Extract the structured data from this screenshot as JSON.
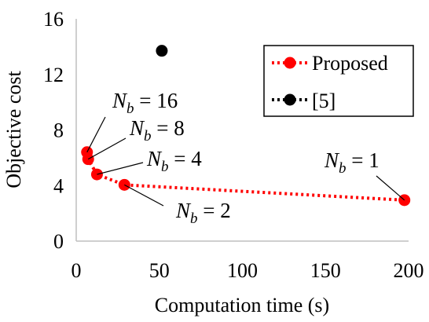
{
  "chart_data": {
    "type": "line",
    "xlabel": "Computation time (s)",
    "ylabel": "Objective cost",
    "xlim": [
      0,
      200
    ],
    "ylim": [
      0,
      16
    ],
    "xticks": [
      0,
      50,
      100,
      150,
      200
    ],
    "yticks": [
      0,
      4,
      8,
      12,
      16
    ],
    "legend_position": "top-right",
    "series": [
      {
        "name": "Proposed",
        "color": "#ff0000",
        "line_style": "dotted",
        "points": [
          {
            "x": 6.5,
            "y": 6.4,
            "label": "N_b = 16"
          },
          {
            "x": 7.2,
            "y": 5.9,
            "label": "N_b = 8"
          },
          {
            "x": 12.5,
            "y": 4.8,
            "label": "N_b = 4"
          },
          {
            "x": 29,
            "y": 4.05,
            "label": "N_b = 2"
          },
          {
            "x": 197.5,
            "y": 2.95,
            "label": "N_b = 1"
          }
        ]
      },
      {
        "name": "[5]",
        "color": "#000000",
        "line_style": "dotted",
        "points": [
          {
            "x": 51.5,
            "y": 13.7
          }
        ]
      }
    ],
    "annotations": [
      {
        "var": "N",
        "sub": "b",
        "value": "16"
      },
      {
        "var": "N",
        "sub": "b",
        "value": "8"
      },
      {
        "var": "N",
        "sub": "b",
        "value": "4"
      },
      {
        "var": "N",
        "sub": "b",
        "value": "2"
      },
      {
        "var": "N",
        "sub": "b",
        "value": "1"
      }
    ]
  }
}
